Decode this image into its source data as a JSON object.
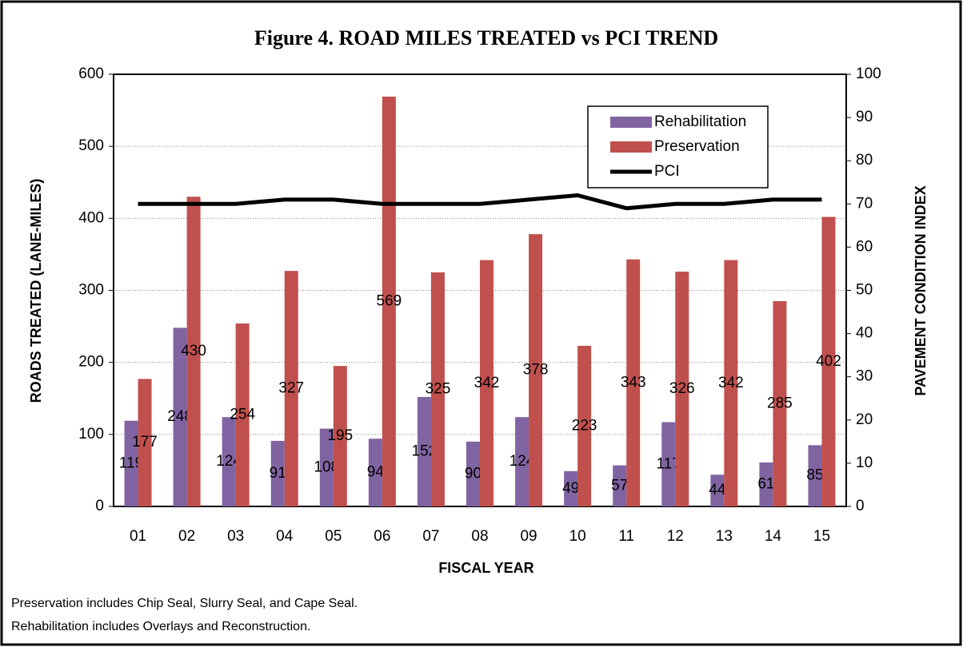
{
  "chart_data": {
    "type": "bar",
    "title": "Figure 4.  ROAD MILES TREATED vs PCI TREND",
    "x_label": "FISCAL YEAR",
    "y_label": "ROADS TREATED (LANE-MILES)",
    "y2_label": "PAVEMENT CONDITION INDEX",
    "categories": [
      "01",
      "02",
      "03",
      "04",
      "05",
      "06",
      "07",
      "08",
      "09",
      "10",
      "11",
      "12",
      "13",
      "14",
      "15"
    ],
    "series": [
      {
        "name": "Rehabilitation",
        "type": "bar",
        "color": "#8064a2",
        "values": [
          119,
          248,
          124,
          91,
          108,
          94,
          152,
          90,
          124,
          49,
          57,
          117,
          44,
          61,
          85
        ]
      },
      {
        "name": "Preservation",
        "type": "bar",
        "color": "#c0504d",
        "values": [
          177,
          430,
          254,
          327,
          195,
          569,
          325,
          342,
          378,
          223,
          343,
          326,
          342,
          285,
          402
        ]
      },
      {
        "name": "PCI",
        "type": "line",
        "axis": "y2",
        "color": "#000000",
        "values": [
          70,
          70,
          70,
          71,
          71,
          70,
          70,
          70,
          71,
          72,
          69,
          70,
          70,
          71,
          71
        ]
      }
    ],
    "ylim": [
      0,
      600
    ],
    "yticks": [
      0,
      100,
      200,
      300,
      400,
      500,
      600
    ],
    "y2lim": [
      0,
      100
    ],
    "y2ticks": [
      0,
      10,
      20,
      30,
      40,
      50,
      60,
      70,
      80,
      90,
      100
    ],
    "grid": true,
    "legend": "upper right",
    "notes": [
      "Preservation includes Chip Seal, Slurry Seal, and Cape Seal.",
      "Rehabilitation includes Overlays and Reconstruction."
    ]
  }
}
